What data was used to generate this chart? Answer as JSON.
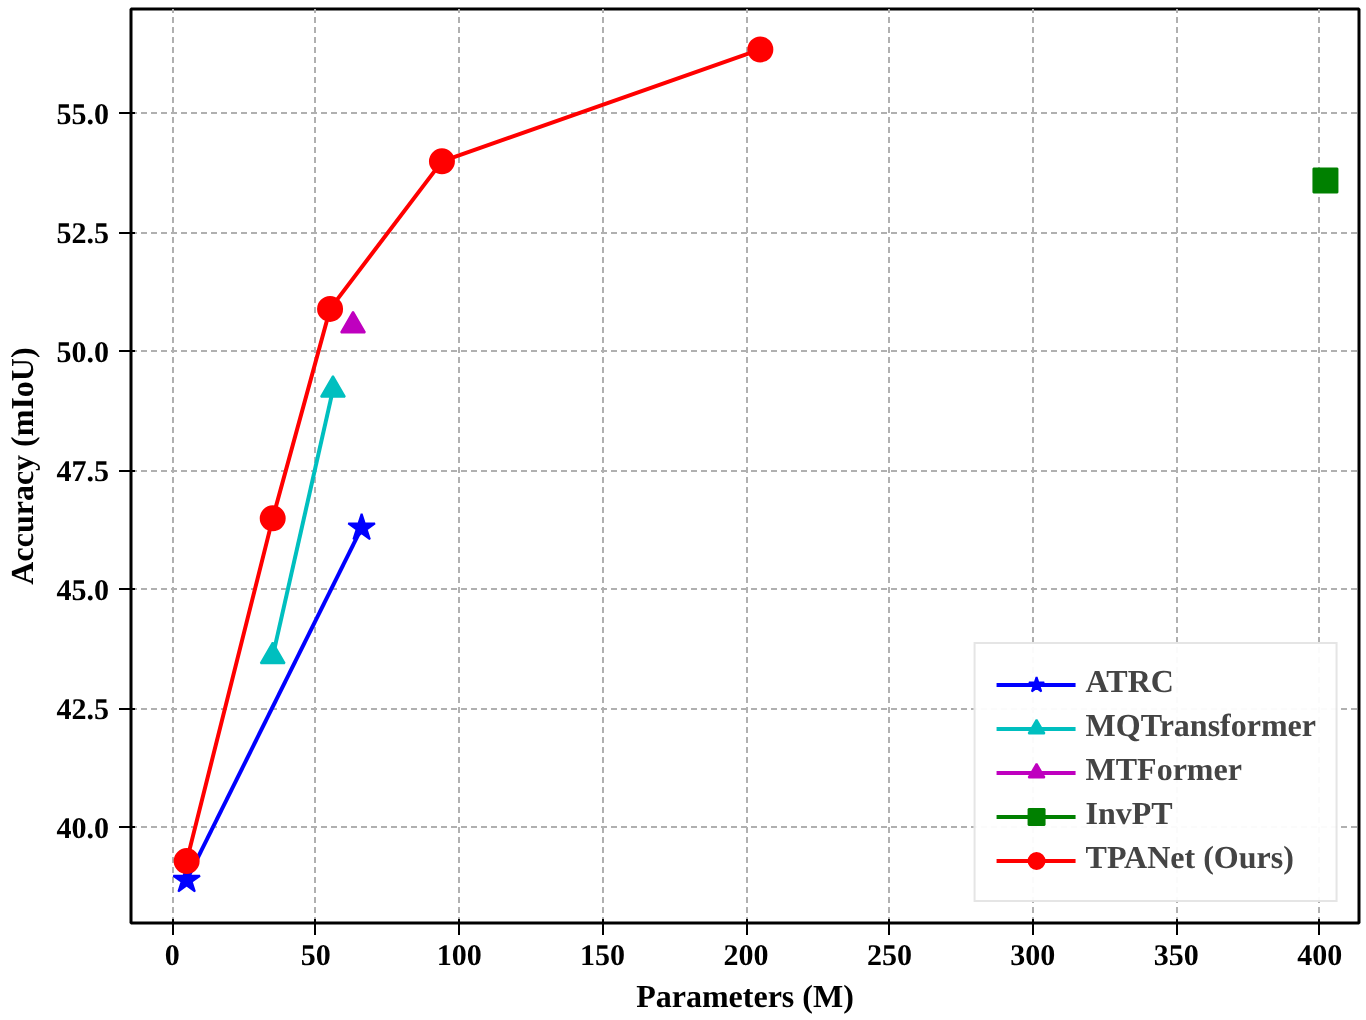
{
  "chart_data": {
    "type": "line",
    "xlabel": "Parameters (M)",
    "ylabel": "Accuracy (mIoU)",
    "xlim": [
      -14.4,
      413.7
    ],
    "ylim": [
      38.0,
      57.2
    ],
    "xticks": [
      0,
      50,
      100,
      150,
      200,
      250,
      300,
      350,
      400
    ],
    "yticks": [
      {
        "value": 40,
        "label": "40.0"
      },
      {
        "value": 42.5,
        "label": "42.5"
      },
      {
        "value": 45,
        "label": "45.0"
      },
      {
        "value": 47.5,
        "label": "47.5"
      },
      {
        "value": 50,
        "label": "50.0"
      },
      {
        "value": 52.5,
        "label": "52.5"
      },
      {
        "value": 55,
        "label": "55.0"
      }
    ],
    "grid": true,
    "legend": "bottom right",
    "line_style": "solid",
    "series": [
      {
        "name": "ATRC",
        "color": "#0000ff",
        "marker": "star",
        "x": [
          5,
          66
        ],
        "values": [
          38.9,
          46.3
        ]
      },
      {
        "name": "MQTransformer",
        "color": "#00bfbf",
        "marker": "triangle",
        "x": [
          35,
          56
        ],
        "values": [
          43.6,
          49.2
        ]
      },
      {
        "name": "MTFormer",
        "color": "#bf00bf",
        "marker": "triangle",
        "x": [
          63
        ],
        "values": [
          50.55
        ]
      },
      {
        "name": "InvPT",
        "color": "#008000",
        "marker": "square",
        "x": [
          402
        ],
        "values": [
          53.6
        ]
      },
      {
        "name": "TPANet (Ours)",
        "color": "#ff0000",
        "marker": "circle",
        "x": [
          5,
          35,
          55,
          94,
          205
        ],
        "values": [
          39.3,
          46.5,
          50.9,
          54.0,
          56.35
        ]
      }
    ]
  }
}
